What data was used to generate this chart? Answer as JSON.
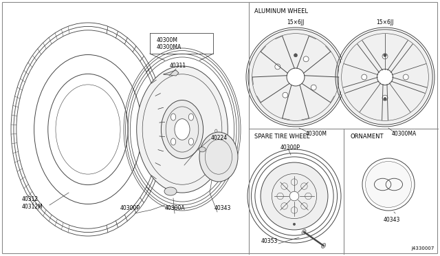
{
  "bg_color": "#ffffff",
  "line_color": "#444444",
  "border_color": "#888888",
  "diagram_id": "J4330007",
  "panel_split": 0.565,
  "figsize": [
    6.4,
    3.72
  ],
  "dpi": 100,
  "labels": {
    "tire_part1": "40312",
    "tire_part2": "40312M",
    "wheel_part1": "40300M",
    "wheel_part2": "40300MA",
    "valve": "40311",
    "nut": "40224",
    "spare_w": "40300P",
    "spacer": "40300A",
    "cap": "40343",
    "alum_title": "ALUMINUM WHEEL",
    "w1_size": "15×6JJ",
    "w1_part": "40300M",
    "w2_size": "15×6JJ",
    "w2_part": "40300MA",
    "spare_title": "SPARE TIRE WHEEL",
    "spare_part": "40300P",
    "spare_acc": "40353",
    "orn_title": "ORNAMENT",
    "orn_part": "40343",
    "diag_id": "J4330007"
  }
}
